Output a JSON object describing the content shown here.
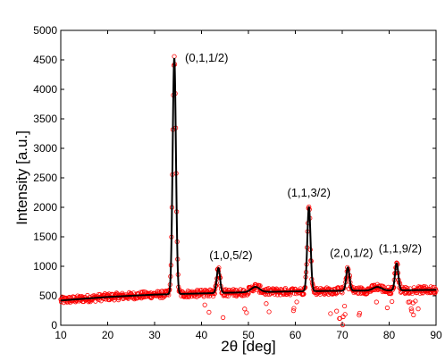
{
  "chart_data": {
    "type": "scatter",
    "xlabel": "2θ [deg]",
    "ylabel": "Intensity [a.u.]",
    "xlim": [
      10,
      90
    ],
    "ylim": [
      0,
      5000
    ],
    "xticks": [
      10,
      20,
      30,
      40,
      50,
      60,
      70,
      80,
      90
    ],
    "yticks": [
      0,
      500,
      1000,
      1500,
      2000,
      2500,
      3000,
      3500,
      4000,
      4500,
      5000
    ],
    "grid": false,
    "colors": {
      "observed": "#ff0000",
      "fit": "#000000"
    },
    "series": [
      {
        "role": "observed",
        "marker": "open-circle",
        "color": "#ff0000"
      },
      {
        "role": "fit",
        "marker": "line",
        "color": "#000000"
      }
    ],
    "baseline": [
      [
        10,
        420
      ],
      [
        20,
        480
      ],
      [
        30,
        520
      ],
      [
        40,
        540
      ],
      [
        50,
        560
      ],
      [
        60,
        575
      ],
      [
        70,
        585
      ],
      [
        80,
        590
      ],
      [
        90,
        600
      ]
    ],
    "peaks": [
      {
        "label": "(0,1,1/2)",
        "x": 34.2,
        "height": 4530
      },
      {
        "label": "(1,0,5/2)",
        "x": 43.6,
        "height": 970
      },
      {
        "label": "(1,1,3/2)",
        "x": 62.9,
        "height": 2000
      },
      {
        "label": "(2,0,1/2)",
        "x": 71.2,
        "height": 980
      },
      {
        "label": "(1,1,9/2)",
        "x": 81.6,
        "height": 1050
      }
    ],
    "minor_bumps": [
      {
        "x": 51.5,
        "height": 650
      },
      {
        "x": 77.5,
        "height": 650
      }
    ]
  }
}
